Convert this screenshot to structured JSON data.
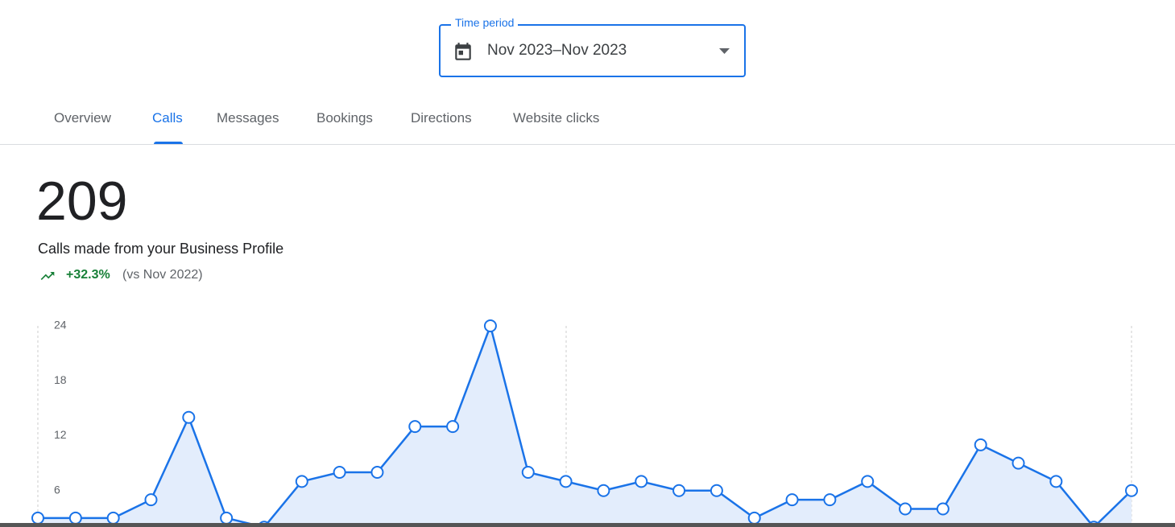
{
  "time_period": {
    "label": "Time period",
    "value": "Nov 2023–Nov 2023"
  },
  "tabs": [
    "Overview",
    "Calls",
    "Messages",
    "Bookings",
    "Directions",
    "Website clicks"
  ],
  "summary": {
    "total": 209,
    "description": "Calls made from your Business Profile",
    "change": "+32.3%",
    "comparison": "(vs Nov 2022)"
  },
  "chart_data": {
    "type": "line",
    "color": "#1a73e8",
    "values": [
      3,
      3,
      3,
      5,
      14,
      3,
      2,
      7,
      8,
      8,
      13,
      13,
      24,
      8,
      7,
      6,
      7,
      6,
      6,
      3,
      5,
      5,
      7,
      4,
      4,
      11,
      9,
      7,
      2,
      6
    ],
    "ylim": [
      0,
      24
    ],
    "yticks": [
      6,
      12,
      18,
      24
    ]
  }
}
